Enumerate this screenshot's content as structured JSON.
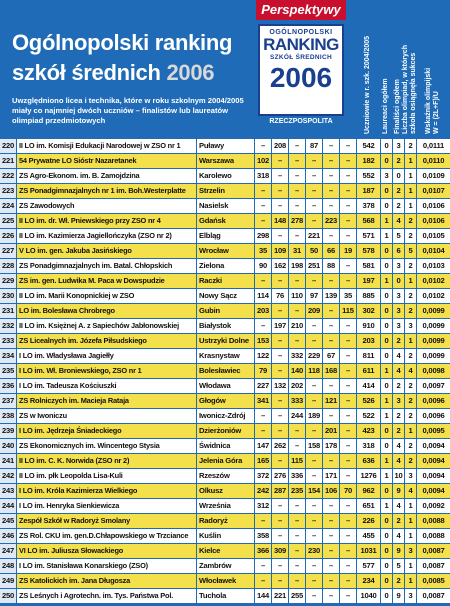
{
  "header": {
    "title_line1": "Ogólnopolski ranking",
    "title_line2": "szkół średnich",
    "title_year": "2006",
    "description": "Uwzględniono licea i technika, które w roku szkolnym 2004/2005 miały co najmniej dwóch uczniów – finalistów lub laureatów olimpiad przedmiotowych",
    "logo": {
      "brand": "Perspektywy",
      "line1": "OGÓLNOPOLSKI",
      "line2": "RANKING",
      "line3": "SZKÓŁ ŚREDNICH",
      "year": "2006",
      "partner": "RZECZPOSPOLITA"
    },
    "columns": [
      [
        "Uczniowie w r. szk. 2004/2005"
      ],
      [
        "Laureaci ogółem"
      ],
      [
        "Finaliści ogółem"
      ],
      [
        "Liczba olimpiad, w których",
        "szkoła osiągnęła sukces"
      ],
      [
        "Wskaźnik olimpijski",
        "W = (2L+F)/U"
      ]
    ]
  },
  "table": {
    "rows": [
      [
        "220",
        "II LO im. Komisji Edukacji Narodowej w ZSO nr 1",
        "Puławy",
        "–",
        "208",
        "–",
        "87",
        "–",
        "–",
        "542",
        "0",
        "3",
        "2",
        "0,0111"
      ],
      [
        "221",
        "54 Prywatne LO Sióstr Nazaretanek",
        "Warszawa",
        "102",
        "–",
        "–",
        "–",
        "–",
        "–",
        "182",
        "0",
        "2",
        "1",
        "0,0110"
      ],
      [
        "222",
        "ZS Agro-Ekonom. im. B. Zamojdzina",
        "Karolewo",
        "318",
        "–",
        "–",
        "–",
        "–",
        "–",
        "552",
        "3",
        "0",
        "1",
        "0,0109"
      ],
      [
        "223",
        "ZS Ponadgimnazjalnych nr 1 im. Boh.Westerplatte",
        "Strzelin",
        "–",
        "–",
        "–",
        "–",
        "–",
        "–",
        "187",
        "0",
        "2",
        "1",
        "0,0107"
      ],
      [
        "224",
        "ZS Zawodowych",
        "Nasielsk",
        "–",
        "–",
        "–",
        "–",
        "–",
        "–",
        "378",
        "0",
        "2",
        "1",
        "0,0106"
      ],
      [
        "225",
        "II LO im. dr. Wł. Pniewskiego przy ZSO nr 4",
        "Gdańsk",
        "–",
        "148",
        "278",
        "–",
        "223",
        "–",
        "568",
        "1",
        "4",
        "2",
        "0,0106"
      ],
      [
        "226",
        "II LO im. Kazimierza Jagiellończyka (ZSO nr 2)",
        "Elbląg",
        "298",
        "–",
        "–",
        "221",
        "–",
        "–",
        "571",
        "1",
        "5",
        "2",
        "0,0105"
      ],
      [
        "227",
        "V LO im. gen. Jakuba Jasińskiego",
        "Wrocław",
        "35",
        "109",
        "31",
        "50",
        "66",
        "19",
        "578",
        "0",
        "6",
        "5",
        "0,0104"
      ],
      [
        "228",
        "ZS Ponadgimnazjalnych im. Batal. Chłopskich",
        "Zielona",
        "90",
        "162",
        "198",
        "251",
        "88",
        "–",
        "581",
        "0",
        "3",
        "2",
        "0,0103"
      ],
      [
        "229",
        "ZS im. gen. Ludwika M. Paca w Dowspudzie",
        "Raczki",
        "–",
        "–",
        "–",
        "–",
        "–",
        "–",
        "197",
        "1",
        "0",
        "1",
        "0,0102"
      ],
      [
        "230",
        "II LO im. Marii Konopnickiej w ZSO",
        "Nowy Sącz",
        "114",
        "76",
        "110",
        "97",
        "139",
        "35",
        "885",
        "0",
        "3",
        "2",
        "0,0102"
      ],
      [
        "231",
        "LO im. Bolesława Chrobrego",
        "Gubin",
        "203",
        "–",
        "–",
        "209",
        "–",
        "115",
        "302",
        "0",
        "3",
        "2",
        "0,0099"
      ],
      [
        "232",
        "II LO im. Księżnej A. z Sapiechów Jabłonowskiej",
        "Białystok",
        "–",
        "197",
        "210",
        "–",
        "–",
        "–",
        "910",
        "0",
        "3",
        "3",
        "0,0099"
      ],
      [
        "233",
        "ZS Licealnych im. Józefa Piłsudskiego",
        "Ustrzyki Dolne",
        "153",
        "–",
        "–",
        "–",
        "–",
        "–",
        "203",
        "0",
        "2",
        "1",
        "0,0099"
      ],
      [
        "234",
        "I LO im. Władysława Jagiełły",
        "Krasnystaw",
        "122",
        "–",
        "332",
        "229",
        "67",
        "–",
        "811",
        "0",
        "4",
        "2",
        "0,0099"
      ],
      [
        "235",
        "I LO im. Wł. Broniewskiego, ZSO nr 1",
        "Bolesławiec",
        "79",
        "–",
        "140",
        "118",
        "168",
        "–",
        "611",
        "1",
        "4",
        "4",
        "0,0098"
      ],
      [
        "236",
        "I LO im. Tadeusza Kościuszki",
        "Włodawa",
        "227",
        "132",
        "202",
        "–",
        "–",
        "–",
        "414",
        "0",
        "2",
        "2",
        "0,0097"
      ],
      [
        "237",
        "ZS Rolniczych im. Macieja Rataja",
        "Głogów",
        "341",
        "–",
        "333",
        "–",
        "121",
        "–",
        "526",
        "1",
        "3",
        "2",
        "0,0096"
      ],
      [
        "238",
        "ZS w Iwoniczu",
        "Iwonicz-Zdrój",
        "–",
        "–",
        "244",
        "189",
        "–",
        "–",
        "522",
        "1",
        "2",
        "2",
        "0,0096"
      ],
      [
        "239",
        "I LO im. Jędrzeja Śniadeckiego",
        "Dzierżoniów",
        "–",
        "–",
        "–",
        "–",
        "201",
        "–",
        "423",
        "0",
        "2",
        "1",
        "0,0095"
      ],
      [
        "240",
        "ZS Ekonomicznych im. Wincentego Stysia",
        "Świdnica",
        "147",
        "262",
        "–",
        "158",
        "178",
        "–",
        "318",
        "0",
        "4",
        "2",
        "0,0094"
      ],
      [
        "241",
        "II LO im. C. K. Norwida (ZSO nr 2)",
        "Jelenia Góra",
        "165",
        "–",
        "115",
        "–",
        "–",
        "–",
        "636",
        "1",
        "4",
        "2",
        "0,0094"
      ],
      [
        "242",
        "II LO im. płk Leopolda Lisa-Kuli",
        "Rzeszów",
        "372",
        "276",
        "336",
        "–",
        "171",
        "–",
        "1276",
        "1",
        "10",
        "3",
        "0,0094"
      ],
      [
        "243",
        "I LO im. Króla Kazimierza Wielkiego",
        "Olkusz",
        "242",
        "287",
        "235",
        "154",
        "106",
        "70",
        "962",
        "0",
        "9",
        "4",
        "0,0094"
      ],
      [
        "244",
        "I LO im. Henryka Sienkiewicza",
        "Września",
        "312",
        "–",
        "–",
        "–",
        "–",
        "–",
        "651",
        "1",
        "4",
        "1",
        "0,0092"
      ],
      [
        "245",
        "Zespół Szkół w Radoryż Smolany",
        "Radoryż",
        "–",
        "–",
        "–",
        "–",
        "–",
        "–",
        "226",
        "0",
        "2",
        "1",
        "0,0088"
      ],
      [
        "246",
        "ZS Rol. CKU im. gen.D.Chłapowskiego w Trzciance",
        "Kuślin",
        "358",
        "–",
        "–",
        "–",
        "–",
        "–",
        "455",
        "0",
        "4",
        "1",
        "0,0088"
      ],
      [
        "247",
        "VI LO im. Juliusza Słowackiego",
        "Kielce",
        "366",
        "309",
        "–",
        "230",
        "–",
        "–",
        "1031",
        "0",
        "9",
        "3",
        "0,0087"
      ],
      [
        "248",
        "I LO im. Stanisława Konarskiego (ZSO)",
        "Zambrów",
        "–",
        "–",
        "–",
        "–",
        "–",
        "–",
        "577",
        "0",
        "5",
        "1",
        "0,0087"
      ],
      [
        "249",
        "ZS Katolickich im. Jana Długosza",
        "Włocławek",
        "–",
        "–",
        "–",
        "–",
        "–",
        "–",
        "234",
        "0",
        "2",
        "1",
        "0,0085"
      ],
      [
        "250",
        "ZS Leśnych i Agrotechn. im. Tys. Państwa Pol.",
        "Tuchola",
        "144",
        "221",
        "255",
        "–",
        "–",
        "–",
        "1040",
        "0",
        "9",
        "3",
        "0,0087"
      ]
    ]
  }
}
